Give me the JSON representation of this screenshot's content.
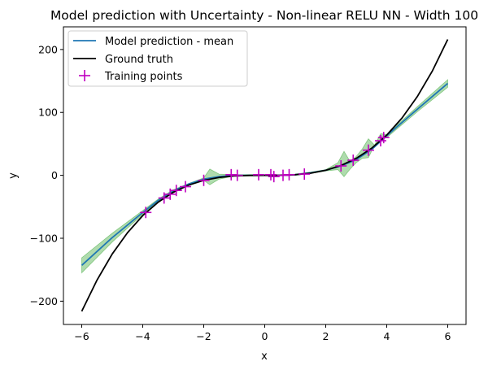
{
  "chart_data": {
    "type": "line",
    "title": "Model prediction with Uncertainty - Non-linear RELU NN - Width 100",
    "xlabel": "x",
    "ylabel": "y",
    "xlim": [
      -6.6,
      6.6
    ],
    "ylim": [
      -237,
      236
    ],
    "xticks": [
      -6,
      -4,
      -2,
      0,
      2,
      4,
      6
    ],
    "yticks": [
      -200,
      -100,
      0,
      100,
      200
    ],
    "grid": false,
    "legend_position": "top-left",
    "series": [
      {
        "name": "Model prediction - mean",
        "kind": "line",
        "color": "#1f77b4",
        "x": [
          -6,
          -5,
          -4,
          -3.5,
          -3,
          -2.5,
          -2,
          -1.5,
          -1,
          -0.5,
          0,
          0.5,
          1,
          1.5,
          2,
          2.5,
          3,
          3.5,
          4,
          5,
          6
        ],
        "y": [
          -143,
          -99,
          -59,
          -40,
          -25,
          -14,
          -6,
          -2,
          0,
          0,
          0,
          0,
          1,
          4,
          8,
          15,
          25,
          41,
          63,
          105,
          146
        ]
      },
      {
        "name": "Ground truth",
        "kind": "line",
        "color": "#000000",
        "x": [
          -6,
          -5.5,
          -5,
          -4.5,
          -4,
          -3.5,
          -3,
          -2.5,
          -2,
          -1.5,
          -1,
          -0.5,
          0,
          0.5,
          1,
          1.5,
          2,
          2.5,
          3,
          3.5,
          4,
          4.5,
          5,
          5.5,
          6
        ],
        "y": [
          -216,
          -166.4,
          -125,
          -91.1,
          -64,
          -42.9,
          -27,
          -15.6,
          -8,
          -3.4,
          -1,
          -0.1,
          0,
          0.1,
          1,
          3.4,
          8,
          15.6,
          27,
          42.9,
          64,
          91.1,
          125,
          166.4,
          216
        ]
      },
      {
        "name": "Training points",
        "kind": "scatter",
        "marker": "+",
        "color": "#bf00bf",
        "x": [
          -3.9,
          -3.3,
          -3.1,
          -2.9,
          -2.6,
          -2.0,
          -1.1,
          -0.9,
          -0.2,
          0.2,
          0.3,
          0.6,
          0.8,
          1.3,
          2.5,
          2.9,
          3.4,
          3.8,
          3.9
        ],
        "y": [
          -59,
          -36,
          -30,
          -24,
          -18,
          -8,
          1,
          0,
          1,
          1,
          -2,
          0,
          1,
          2,
          15,
          24,
          40,
          55,
          60
        ]
      }
    ],
    "uncertainty_band": {
      "color": "#4daf4a",
      "opacity": 0.45,
      "x": [
        -6,
        -5,
        -4,
        -3.5,
        -3,
        -2.5,
        -2,
        -1.8,
        -1.5,
        -1,
        -0.5,
        0,
        0.5,
        1,
        1.5,
        2,
        2.4,
        2.6,
        2.8,
        3,
        3.2,
        3.4,
        3.6,
        3.8,
        4,
        5,
        6
      ],
      "lower": [
        -155,
        -106,
        -62,
        -42,
        -27,
        -15,
        -8,
        -15,
        -6,
        -1,
        -1,
        -1,
        -1,
        0,
        3,
        7,
        9,
        -2,
        10,
        20,
        27,
        28,
        48,
        56,
        60,
        101,
        140
      ],
      "upper": [
        -131,
        -92,
        -56,
        -38,
        -23,
        -13,
        -4,
        10,
        2,
        1,
        1,
        1,
        1,
        2,
        5,
        9,
        20,
        38,
        22,
        30,
        42,
        58,
        48,
        66,
        65,
        109,
        152
      ]
    }
  }
}
